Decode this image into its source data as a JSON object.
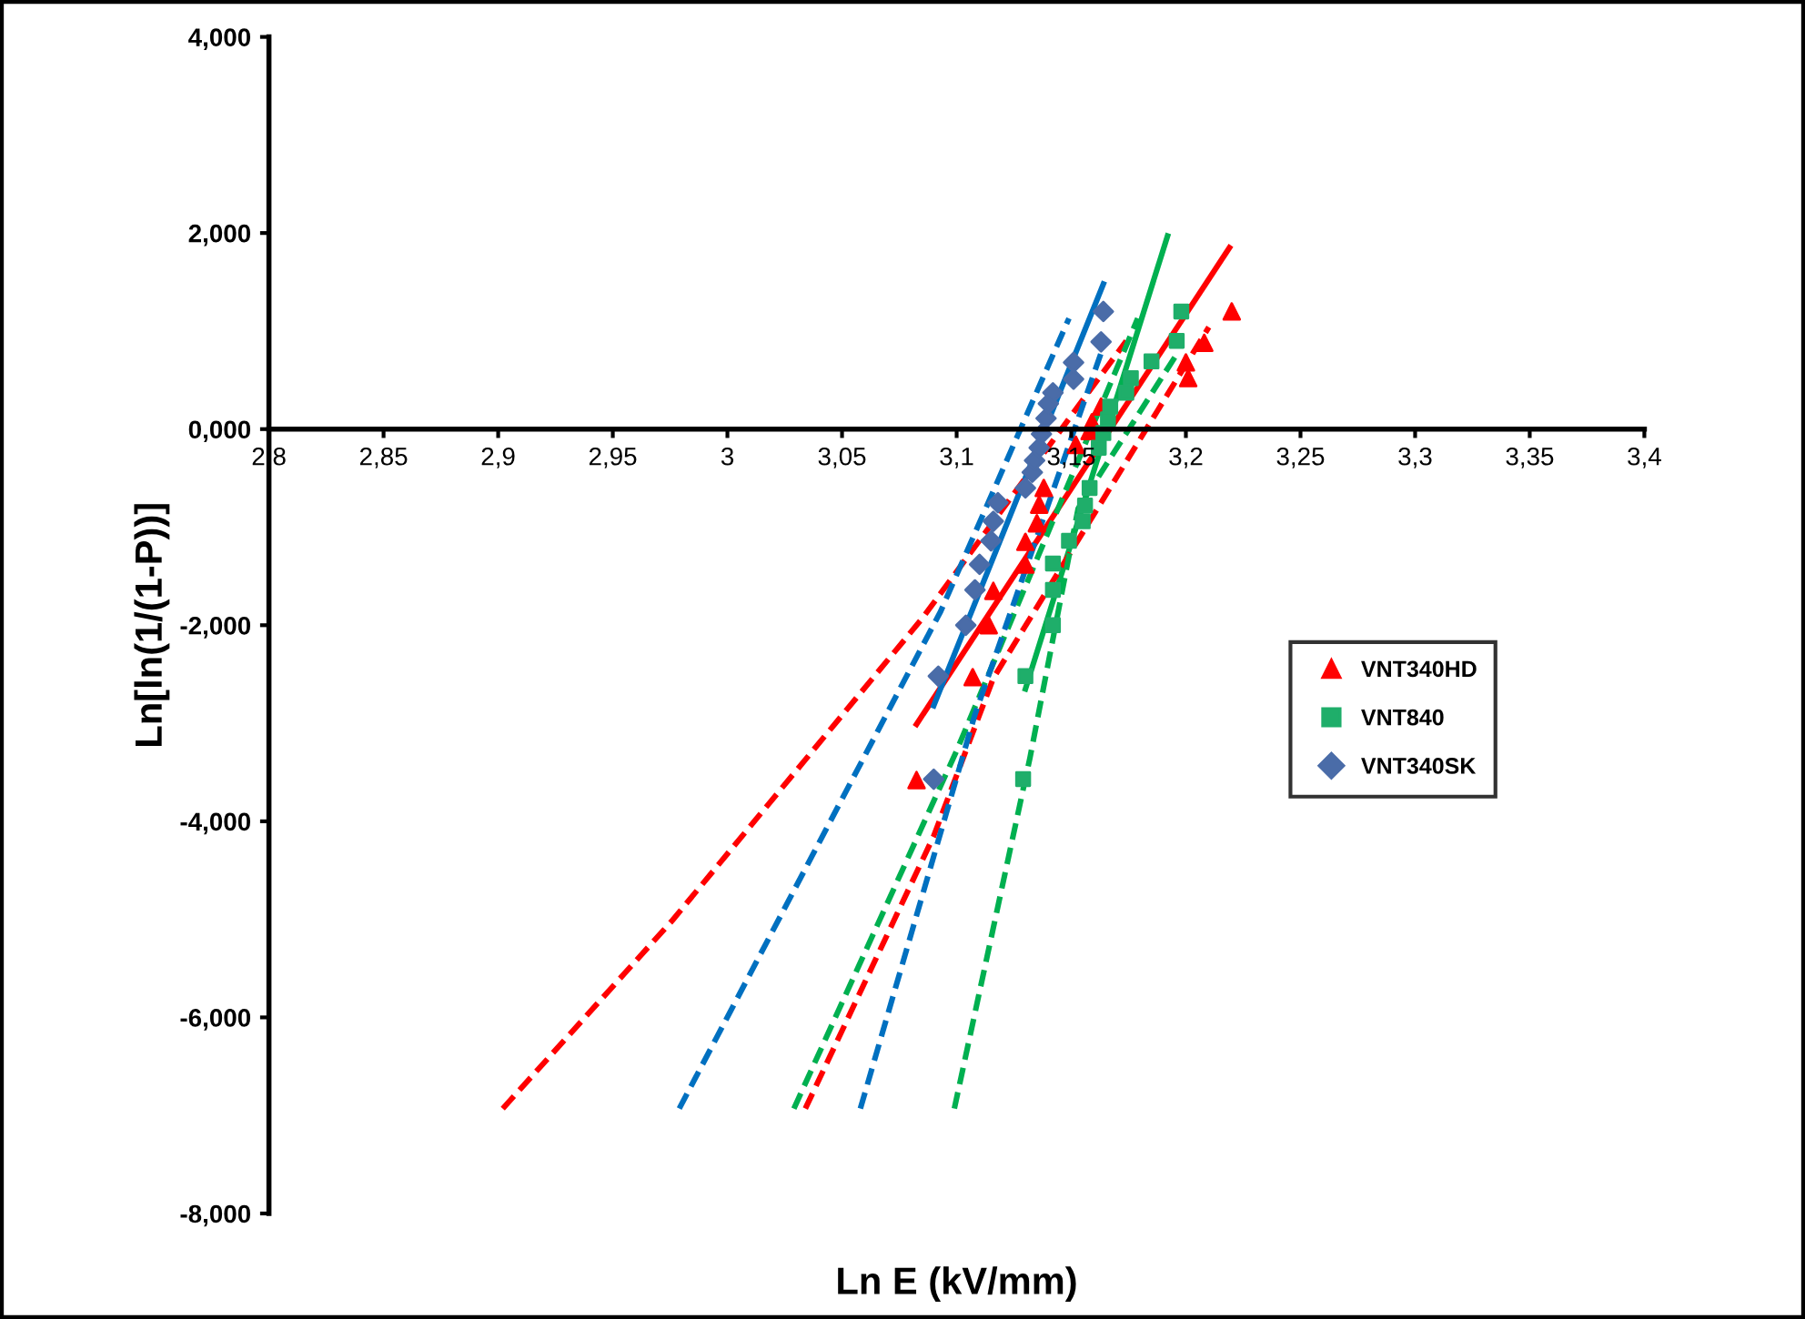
{
  "chart_data": {
    "type": "scatter",
    "xlabel": "Ln E (kV/mm)",
    "ylabel": "Ln[ln(1/(1-P))]",
    "xlim": [
      2.8,
      3.4
    ],
    "ylim": [
      -8,
      4
    ],
    "xticks": [
      {
        "value": 2.8,
        "label": "2,8"
      },
      {
        "value": 2.85,
        "label": "2,85"
      },
      {
        "value": 2.9,
        "label": "2,9"
      },
      {
        "value": 2.95,
        "label": "2,95"
      },
      3,
      {
        "value": 3.05,
        "label": "3,05"
      },
      {
        "value": 3.1,
        "label": "3,1"
      },
      {
        "value": 3.15,
        "label": "3,15"
      },
      {
        "value": 3.2,
        "label": "3,2"
      },
      {
        "value": 3.25,
        "label": "3,25"
      },
      {
        "value": 3.3,
        "label": "3,3"
      },
      {
        "value": 3.35,
        "label": "3,35"
      },
      {
        "value": 3.4,
        "label": "3,4"
      }
    ],
    "yticks": [
      {
        "value": -8,
        "label": "-8,000"
      },
      {
        "value": -6,
        "label": "-6,000"
      },
      {
        "value": -4,
        "label": "-4,000"
      },
      {
        "value": -2,
        "label": "-2,000"
      },
      {
        "value": 0,
        "label": "0,000"
      },
      {
        "value": 2,
        "label": "2,000"
      },
      {
        "value": 4,
        "label": "4,000"
      }
    ],
    "grid": false,
    "legend": "right",
    "series": [
      {
        "name": "VNT340HD",
        "marker": "triangle",
        "color": "#ff0000",
        "x": [
          3.0825,
          3.107,
          3.114,
          3.116,
          3.13,
          3.13,
          3.135,
          3.136,
          3.138,
          3.152,
          3.158,
          3.159,
          3.163,
          3.201,
          3.2,
          3.208,
          3.22
        ],
        "values": [
          -3.58,
          -2.53,
          -2.0,
          -1.65,
          -1.38,
          -1.15,
          -0.96,
          -0.77,
          -0.6,
          -0.16,
          -0.02,
          0.07,
          0.23,
          0.52,
          0.68,
          0.88,
          1.2
        ]
      },
      {
        "name": "VNT840",
        "marker": "square",
        "color": "#1fae6a",
        "x": [
          3.129,
          3.13,
          3.142,
          3.142,
          3.142,
          3.149,
          3.155,
          3.156,
          3.158,
          3.162,
          3.164,
          3.166,
          3.167,
          3.174,
          3.176,
          3.185,
          3.196,
          3.198
        ],
        "values": [
          -3.57,
          -2.52,
          -2.0,
          -1.64,
          -1.37,
          -1.14,
          -0.94,
          -0.78,
          -0.6,
          -0.19,
          -0.04,
          0.1,
          0.23,
          0.37,
          0.52,
          0.69,
          0.9,
          1.2
        ]
      },
      {
        "name": "VNT340SK",
        "marker": "diamond",
        "color": "#4a6ca8",
        "x": [
          3.09,
          3.092,
          3.104,
          3.108,
          3.11,
          3.115,
          3.116,
          3.118,
          3.13,
          3.133,
          3.134,
          3.136,
          3.137,
          3.139,
          3.14,
          3.142,
          3.151,
          3.151,
          3.163,
          3.164
        ],
        "values": [
          -3.57,
          -2.52,
          -2.0,
          -1.64,
          -1.38,
          -1.14,
          -0.94,
          -0.75,
          -0.6,
          -0.44,
          -0.32,
          -0.19,
          -0.05,
          0.11,
          0.26,
          0.37,
          0.51,
          0.68,
          0.89,
          1.2
        ]
      },
      {
        "type": "line",
        "line_style": "solid",
        "color": "#ff0000",
        "x": [
          3.0825,
          3.219
        ],
        "values": [
          -3.01,
          1.85
        ]
      },
      {
        "type": "line",
        "line_style": "solid",
        "color": "#00b050",
        "x": [
          3.13,
          3.192
        ],
        "values": [
          -2.65,
          1.97
        ]
      },
      {
        "type": "line",
        "line_style": "solid",
        "color": "#0070c0",
        "x": [
          3.09,
          3.164
        ],
        "values": [
          -2.82,
          1.48
        ]
      },
      {
        "type": "line",
        "line_style": "dashed",
        "color": "#ff0000",
        "x": [
          2.902,
          2.976,
          3.085,
          3.174
        ],
        "values": [
          -6.93,
          -5.01,
          -1.93,
          0.9
        ]
      },
      {
        "type": "line",
        "line_style": "dashed",
        "color": "#ff0000",
        "x": [
          3.034,
          3.09,
          3.116,
          3.21
        ],
        "values": [
          -6.93,
          -4.15,
          -2.54,
          1.04
        ]
      },
      {
        "type": "line",
        "line_style": "dashed",
        "color": "#00b050",
        "x": [
          3.029,
          3.1,
          3.179
        ],
        "values": [
          -6.93,
          -3.28,
          1.13
        ]
      },
      {
        "type": "line",
        "line_style": "dashed",
        "color": "#00b050",
        "x": [
          3.099,
          3.132,
          3.153,
          3.197
        ],
        "values": [
          -6.93,
          -3.35,
          -0.81,
          0.8
        ]
      },
      {
        "type": "line",
        "line_style": "dashed",
        "color": "#0070c0",
        "x": [
          2.979,
          3.093,
          3.149
        ],
        "values": [
          -6.93,
          -1.86,
          1.13
        ]
      },
      {
        "type": "line",
        "line_style": "dashed",
        "color": "#0070c0",
        "x": [
          3.058,
          3.108,
          3.165
        ],
        "values": [
          -6.93,
          -2.91,
          0.91
        ]
      }
    ]
  }
}
